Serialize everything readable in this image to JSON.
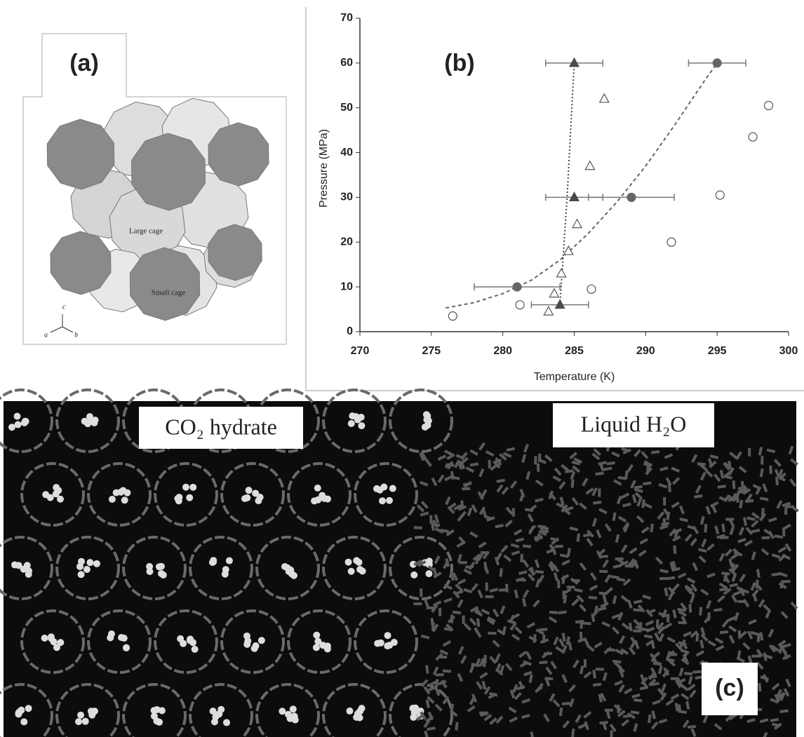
{
  "panel_a": {
    "label": "(a)",
    "large_cage": "Large cage",
    "small_cage": "Small cage",
    "axes": [
      "c",
      "a",
      "b"
    ]
  },
  "chart_data": {
    "type": "scatter",
    "label": "(b)",
    "xlabel": "Temperature (K)",
    "ylabel": "Pressure (MPa)",
    "xlim": [
      270,
      300
    ],
    "xticks": [
      270,
      275,
      280,
      285,
      290,
      295,
      300
    ],
    "ylim": [
      0,
      70
    ],
    "yticks": [
      0,
      10,
      20,
      30,
      40,
      50,
      60,
      70
    ],
    "series": [
      {
        "marker": "triangle",
        "filled": true,
        "color": "#4a4a4a",
        "x": [
          285,
          285,
          284
        ],
        "values": [
          60,
          30,
          6
        ],
        "xerr": [
          2,
          2,
          2
        ]
      },
      {
        "marker": "circle",
        "filled": true,
        "color": "#666666",
        "x": [
          295,
          289,
          281
        ],
        "values": [
          60,
          30,
          10
        ],
        "xerr": [
          2,
          3,
          3
        ]
      },
      {
        "marker": "triangle",
        "filled": false,
        "color": "#555555",
        "x": [
          287.1,
          286.1,
          285.2,
          284.6,
          284.1,
          283.6,
          283.2
        ],
        "values": [
          52,
          37,
          24,
          18,
          13,
          8.5,
          4.5
        ]
      },
      {
        "marker": "circle",
        "filled": false,
        "color": "#555555",
        "x": [
          276.5,
          281.2,
          286.2,
          291.8,
          295.2,
          297.5,
          298.6
        ],
        "values": [
          3.5,
          6,
          9.5,
          20,
          30.5,
          43.5,
          50.5
        ]
      },
      {
        "marker": "line",
        "style": "dotted",
        "color": "#444444",
        "x": [
          284,
          284.5,
          285
        ],
        "values": [
          6,
          30,
          60
        ]
      },
      {
        "marker": "line",
        "style": "dashed",
        "color": "#666666",
        "x": [
          276,
          278,
          280,
          282,
          284,
          286,
          288,
          290,
          292,
          294,
          295
        ],
        "values": [
          5.3,
          6.5,
          8.5,
          11.5,
          16,
          22,
          29,
          37,
          46,
          55.5,
          60
        ]
      }
    ]
  },
  "panel_c": {
    "label": "(c)",
    "left_label": "CO₂ hydrate",
    "right_label": "Liquid H₂O"
  }
}
